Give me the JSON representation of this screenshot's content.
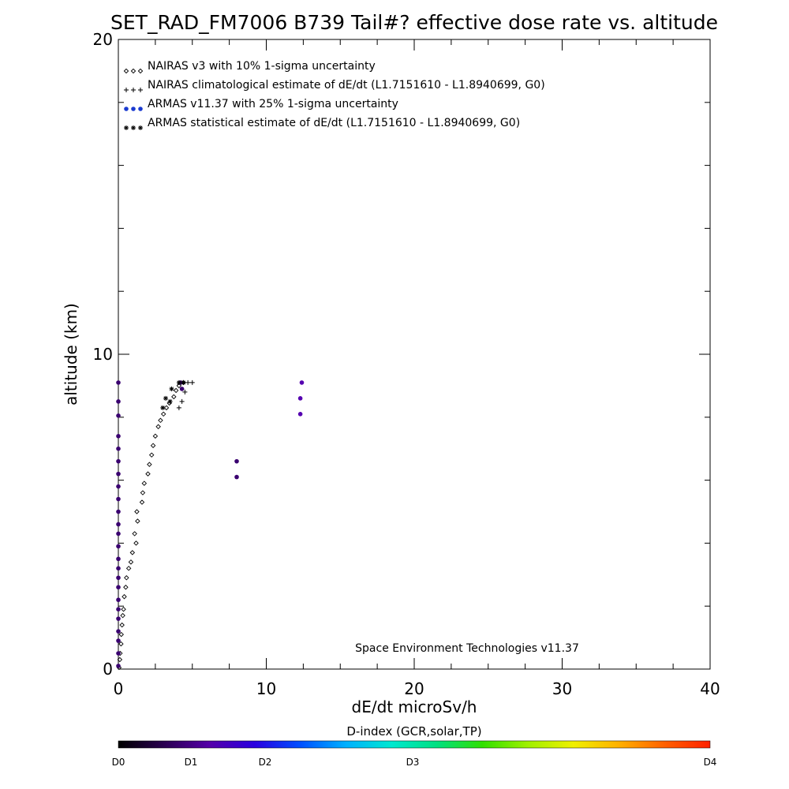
{
  "chart_data": {
    "type": "scatter",
    "title": "SET_RAD_FM7006  B739 Tail#? effective dose rate vs. altitude",
    "xlabel": "dE/dt microSv/h",
    "ylabel": "altitude (km)",
    "xlim": [
      0,
      40
    ],
    "ylim": [
      0,
      20
    ],
    "x_ticks": [
      "0",
      "10",
      "20",
      "30",
      "40"
    ],
    "y_ticks": [
      "0",
      "10",
      "20"
    ],
    "legend_position": "top-left",
    "credit": "Space Environment Technologies v11.37",
    "legend": [
      {
        "marker": "◇◇◇",
        "label": "NAIRAS v3 with 10% 1-sigma uncertainty"
      },
      {
        "marker": "+++",
        "label": "NAIRAS climatological estimate of dE/dt (L1.7151610 - L1.8940699, G0)"
      },
      {
        "marker": "●●●",
        "label": "ARMAS v11.37 with 25% 1-sigma uncertainty"
      },
      {
        "marker": "***",
        "label": "ARMAS statistical estimate of dE/dt (L1.7151610 - L1.8940699, G0)"
      }
    ],
    "series": [
      {
        "name": "NAIRAS v3 with 10% 1-sigma uncertainty",
        "marker": "diamond",
        "color": "#000000",
        "points": [
          [
            0.05,
            0.05
          ],
          [
            0.1,
            0.3
          ],
          [
            0.12,
            0.5
          ],
          [
            0.18,
            0.8
          ],
          [
            0.2,
            1.1
          ],
          [
            0.25,
            1.4
          ],
          [
            0.3,
            1.7
          ],
          [
            0.35,
            1.9
          ],
          [
            0.4,
            2.3
          ],
          [
            0.5,
            2.6
          ],
          [
            0.55,
            2.9
          ],
          [
            0.7,
            3.2
          ],
          [
            0.85,
            3.4
          ],
          [
            0.95,
            3.7
          ],
          [
            1.2,
            4.0
          ],
          [
            1.1,
            4.3
          ],
          [
            1.3,
            4.7
          ],
          [
            1.25,
            5.0
          ],
          [
            1.6,
            5.3
          ],
          [
            1.65,
            5.6
          ],
          [
            1.75,
            5.9
          ],
          [
            2.0,
            6.2
          ],
          [
            2.1,
            6.5
          ],
          [
            2.25,
            6.8
          ],
          [
            2.35,
            7.1
          ],
          [
            2.5,
            7.4
          ],
          [
            2.7,
            7.7
          ],
          [
            2.85,
            7.9
          ],
          [
            3.05,
            8.1
          ],
          [
            3.25,
            8.3
          ],
          [
            3.45,
            8.45
          ],
          [
            3.75,
            8.65
          ],
          [
            3.9,
            8.85
          ],
          [
            4.1,
            9.0
          ],
          [
            4.4,
            9.1
          ]
        ]
      },
      {
        "name": "NAIRAS climatological estimate of dE/dt (L1.7151610 - L1.8940699, G0)",
        "marker": "plus",
        "color": "#000000",
        "points": [
          [
            4.1,
            8.3
          ],
          [
            4.3,
            8.5
          ],
          [
            4.5,
            8.8
          ],
          [
            4.7,
            9.1
          ],
          [
            5.0,
            9.1
          ]
        ]
      },
      {
        "name": "ARMAS v11.37 with 25% 1-sigma uncertainty",
        "marker": "dot",
        "color": "#3a0070",
        "points": [
          [
            0.0,
            9.1
          ],
          [
            0.0,
            8.5
          ],
          [
            0.0,
            8.05
          ],
          [
            0.0,
            7.4
          ],
          [
            0.0,
            7.0
          ],
          [
            0.0,
            6.6
          ],
          [
            0.0,
            6.2
          ],
          [
            0.0,
            5.8
          ],
          [
            0.0,
            5.4
          ],
          [
            0.0,
            5.0
          ],
          [
            0.0,
            4.6
          ],
          [
            0.0,
            4.3
          ],
          [
            0.0,
            3.9
          ],
          [
            0.0,
            3.5
          ],
          [
            0.0,
            3.2
          ],
          [
            0.0,
            2.9
          ],
          [
            0.0,
            2.6
          ],
          [
            0.0,
            2.2
          ],
          [
            0.0,
            1.9
          ],
          [
            0.0,
            1.6
          ],
          [
            0.0,
            1.2
          ],
          [
            0.0,
            0.9
          ],
          [
            0.0,
            0.5
          ],
          [
            0.0,
            0.1
          ],
          [
            8.0,
            6.6
          ],
          [
            8.0,
            6.1
          ],
          [
            12.3,
            8.1
          ],
          [
            12.3,
            8.6
          ],
          [
            12.4,
            9.1
          ],
          [
            4.2,
            9.1
          ],
          [
            4.3,
            8.9
          ]
        ]
      },
      {
        "name": "ARMAS statistical estimate of dE/dt (L1.7151610 - L1.8940699, G0)",
        "marker": "asterisk",
        "color": "#000000",
        "points": [
          [
            3.0,
            8.3
          ],
          [
            3.2,
            8.6
          ],
          [
            3.5,
            8.5
          ],
          [
            3.6,
            8.9
          ],
          [
            4.1,
            9.1
          ],
          [
            4.4,
            9.1
          ]
        ]
      }
    ],
    "colorbar": {
      "title": "D-index (GCR,solar,TP)",
      "labels": [
        {
          "text": "D0",
          "value": 0
        },
        {
          "text": "D1",
          "value": 1
        },
        {
          "text": "D2",
          "value": 2
        },
        {
          "text": "D3",
          "value": 3
        },
        {
          "text": "D4",
          "value": 4
        }
      ],
      "colors": [
        "#000000",
        "#2a0050",
        "#5500a8",
        "#2a00e0",
        "#0050ff",
        "#00b0ff",
        "#00e8d0",
        "#00e080",
        "#30e000",
        "#a0f000",
        "#f0f000",
        "#ffb000",
        "#ff6000",
        "#ff2000"
      ]
    }
  }
}
